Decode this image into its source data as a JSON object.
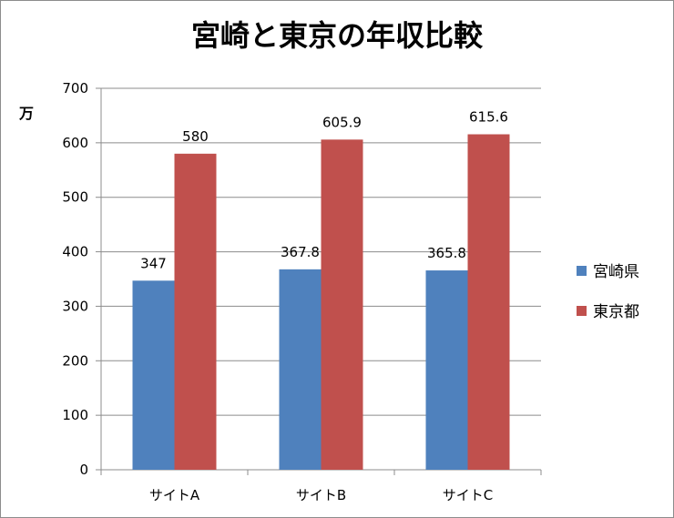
{
  "chart_data": {
    "type": "bar",
    "title": "宮崎と東京の年収比較",
    "ylabel": "万",
    "xlabel": "",
    "categories": [
      "サイトA",
      "サイトB",
      "サイトC"
    ],
    "series": [
      {
        "name": "宮崎県",
        "color": "#4f81bd",
        "values": [
          347,
          367.8,
          365.8
        ]
      },
      {
        "name": "東京都",
        "color": "#c0504d",
        "values": [
          580,
          605.9,
          615.6
        ]
      }
    ],
    "ylim": [
      0,
      700
    ],
    "yticks": [
      0,
      100,
      200,
      300,
      400,
      500,
      600,
      700
    ],
    "grid": true,
    "legend": "right"
  }
}
